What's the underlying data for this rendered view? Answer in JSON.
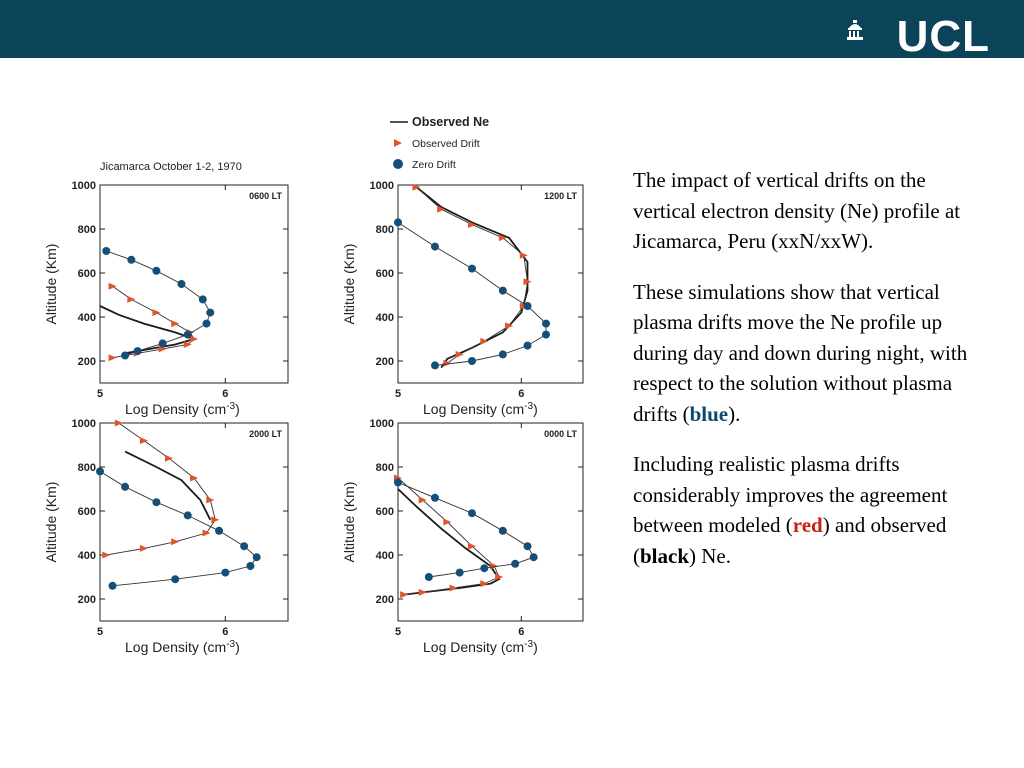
{
  "logo": {
    "text": "UCL"
  },
  "figure": {
    "site_caption": "Jicamarca  October 1-2, 1970",
    "legend": [
      "Observed Ne",
      "Observed Drift",
      "Zero Drift"
    ],
    "y_axis_label": "Altitude (Km)",
    "x_axis_label": "Log Density (cm",
    "x_axis_exponent": "-3",
    "x_axis_close": ")"
  },
  "text": {
    "paragraph1": "The impact of vertical drifts on the vertical electron density (Ne) profile at Jicamarca, Peru (xxN/xxW).",
    "paragraph2_pre": "These simulations show that vertical plasma drifts move the Ne profile up during day and down during night, with respect to the solution without plasma drifts (",
    "paragraph2_blue": "blue",
    "paragraph2_post": ").",
    "paragraph3_pre": "Including realistic plasma drifts considerably improves the agreement between modeled (",
    "paragraph3_red": "red",
    "paragraph3_mid": ") and observed (",
    "paragraph3_black": "black",
    "paragraph3_post": ") Ne."
  },
  "colors": {
    "banner": "#0b4458",
    "observed_ne": "#1a1a1a",
    "observed_drift": "#e0552c",
    "zero_drift": "#154f78"
  },
  "chart_data": [
    {
      "type": "line",
      "time_label": "0600 LT",
      "xlim": [
        5,
        6.5
      ],
      "ylim": [
        100,
        1000
      ],
      "xticks": [
        5,
        6
      ],
      "yticks": [
        200,
        400,
        600,
        800,
        1000
      ],
      "series": [
        {
          "name": "Observed Ne",
          "points": [
            [
              5.0,
              450
            ],
            [
              5.15,
              410
            ],
            [
              5.35,
              370
            ],
            [
              5.6,
              330
            ],
            [
              5.75,
              300
            ],
            [
              5.6,
              275
            ],
            [
              5.4,
              255
            ],
            [
              5.2,
              235
            ]
          ]
        },
        {
          "name": "Observed Drift",
          "points": [
            [
              5.1,
              540
            ],
            [
              5.25,
              480
            ],
            [
              5.45,
              420
            ],
            [
              5.6,
              370
            ],
            [
              5.72,
              330
            ],
            [
              5.75,
              300
            ],
            [
              5.7,
              275
            ],
            [
              5.5,
              255
            ],
            [
              5.3,
              235
            ],
            [
              5.1,
              215
            ]
          ]
        },
        {
          "name": "Zero Drift",
          "points": [
            [
              5.05,
              700
            ],
            [
              5.25,
              660
            ],
            [
              5.45,
              610
            ],
            [
              5.65,
              550
            ],
            [
              5.82,
              480
            ],
            [
              5.88,
              420
            ],
            [
              5.85,
              370
            ],
            [
              5.7,
              320
            ],
            [
              5.5,
              280
            ],
            [
              5.3,
              245
            ],
            [
              5.2,
              225
            ]
          ]
        }
      ]
    },
    {
      "type": "line",
      "time_label": "1200 LT",
      "xlim": [
        5,
        6.5
      ],
      "ylim": [
        100,
        1000
      ],
      "xticks": [
        5,
        6
      ],
      "yticks": [
        200,
        400,
        600,
        800,
        1000
      ],
      "series": [
        {
          "name": "Observed Ne",
          "points": [
            [
              5.15,
              990
            ],
            [
              5.35,
              900
            ],
            [
              5.6,
              830
            ],
            [
              5.9,
              760
            ],
            [
              6.05,
              650
            ],
            [
              6.05,
              520
            ],
            [
              6.0,
              420
            ],
            [
              5.85,
              330
            ],
            [
              5.6,
              260
            ],
            [
              5.4,
              210
            ],
            [
              5.35,
              170
            ]
          ]
        },
        {
          "name": "Observed Drift",
          "points": [
            [
              5.15,
              990
            ],
            [
              5.35,
              890
            ],
            [
              5.6,
              820
            ],
            [
              5.85,
              760
            ],
            [
              6.02,
              680
            ],
            [
              6.05,
              560
            ],
            [
              6.02,
              450
            ],
            [
              5.9,
              360
            ],
            [
              5.7,
              290
            ],
            [
              5.5,
              230
            ],
            [
              5.4,
              190
            ]
          ]
        },
        {
          "name": "Zero Drift",
          "points": [
            [
              5.0,
              830
            ],
            [
              5.3,
              720
            ],
            [
              5.6,
              620
            ],
            [
              5.85,
              520
            ],
            [
              6.05,
              450
            ],
            [
              6.2,
              370
            ],
            [
              6.2,
              320
            ],
            [
              6.05,
              270
            ],
            [
              5.85,
              230
            ],
            [
              5.6,
              200
            ],
            [
              5.3,
              180
            ]
          ]
        }
      ]
    },
    {
      "type": "line",
      "time_label": "2000 LT",
      "xlim": [
        5,
        6.5
      ],
      "ylim": [
        100,
        1000
      ],
      "xticks": [
        5,
        6
      ],
      "yticks": [
        200,
        400,
        600,
        800,
        1000
      ],
      "series": [
        {
          "name": "Observed Ne",
          "points": [
            [
              5.2,
              870
            ],
            [
              5.45,
              800
            ],
            [
              5.65,
              740
            ],
            [
              5.8,
              650
            ],
            [
              5.88,
              560
            ]
          ]
        },
        {
          "name": "Observed Drift",
          "points": [
            [
              5.15,
              1000
            ],
            [
              5.35,
              920
            ],
            [
              5.55,
              840
            ],
            [
              5.75,
              750
            ],
            [
              5.88,
              650
            ],
            [
              5.92,
              560
            ],
            [
              5.85,
              500
            ],
            [
              5.6,
              460
            ],
            [
              5.35,
              430
            ],
            [
              5.05,
              400
            ]
          ]
        },
        {
          "name": "Zero Drift",
          "points": [
            [
              5.0,
              780
            ],
            [
              5.2,
              710
            ],
            [
              5.45,
              640
            ],
            [
              5.7,
              580
            ],
            [
              5.95,
              510
            ],
            [
              6.15,
              440
            ],
            [
              6.25,
              390
            ],
            [
              6.2,
              350
            ],
            [
              6.0,
              320
            ],
            [
              5.6,
              290
            ],
            [
              5.1,
              260
            ]
          ]
        }
      ]
    },
    {
      "type": "line",
      "time_label": "0000 LT",
      "xlim": [
        5,
        6.5
      ],
      "ylim": [
        100,
        1000
      ],
      "xticks": [
        5,
        6
      ],
      "yticks": [
        200,
        400,
        600,
        800,
        1000
      ],
      "series": [
        {
          "name": "Observed Ne",
          "points": [
            [
              5.0,
              700
            ],
            [
              5.15,
              620
            ],
            [
              5.35,
              520
            ],
            [
              5.55,
              430
            ],
            [
              5.75,
              350
            ],
            [
              5.82,
              290
            ],
            [
              5.75,
              270
            ],
            [
              5.5,
              250
            ],
            [
              5.2,
              230
            ],
            [
              5.05,
              220
            ]
          ]
        },
        {
          "name": "Observed Drift",
          "points": [
            [
              5.0,
              750
            ],
            [
              5.2,
              650
            ],
            [
              5.4,
              550
            ],
            [
              5.6,
              440
            ],
            [
              5.78,
              350
            ],
            [
              5.82,
              300
            ],
            [
              5.7,
              270
            ],
            [
              5.45,
              250
            ],
            [
              5.2,
              230
            ],
            [
              5.05,
              220
            ]
          ]
        },
        {
          "name": "Zero Drift",
          "points": [
            [
              5.0,
              730
            ],
            [
              5.3,
              660
            ],
            [
              5.6,
              590
            ],
            [
              5.85,
              510
            ],
            [
              6.05,
              440
            ],
            [
              6.1,
              390
            ],
            [
              5.95,
              360
            ],
            [
              5.7,
              340
            ],
            [
              5.5,
              320
            ],
            [
              5.25,
              300
            ]
          ]
        }
      ]
    }
  ]
}
